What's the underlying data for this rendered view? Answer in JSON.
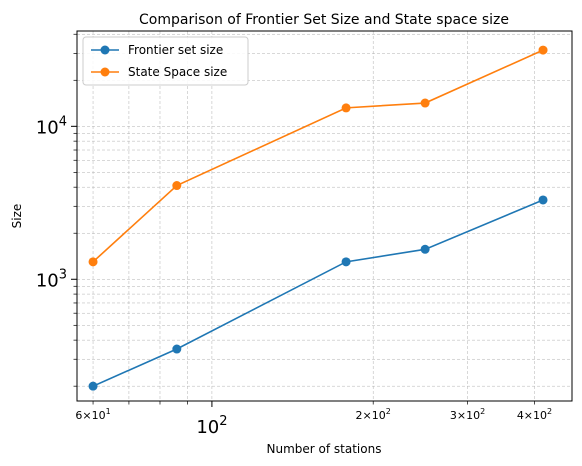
{
  "chart_data": {
    "type": "line",
    "title": "Comparison of Frontier Set Size and State space size",
    "xlabel": "Number of stations",
    "ylabel": "Size",
    "x_scale": "log",
    "y_scale": "log",
    "xlim": [
      56,
      470
    ],
    "ylim": [
      160,
      42000
    ],
    "grid": true,
    "legend_position": "top-left",
    "x": [
      60,
      86,
      178,
      250,
      415
    ],
    "series": [
      {
        "name": "Frontier set size",
        "color": "#1f77b4",
        "values": [
          200,
          350,
          1300,
          1570,
          3300
        ]
      },
      {
        "name": "State Space size",
        "color": "#ff7f0e",
        "values": [
          1300,
          4100,
          13200,
          14200,
          31500
        ]
      }
    ],
    "x_ticks": [
      {
        "value": 60,
        "base": "6",
        "exp": "1",
        "size": "small"
      },
      {
        "value": 100,
        "base": "10",
        "exp": "2",
        "size": "big"
      },
      {
        "value": 200,
        "base": "2",
        "exp": "2",
        "size": "small"
      },
      {
        "value": 300,
        "base": "3",
        "exp": "2",
        "size": "small"
      },
      {
        "value": 400,
        "base": "4",
        "exp": "2",
        "size": "small"
      }
    ],
    "y_ticks": [
      {
        "value": 1000,
        "base": "10",
        "exp": "3"
      },
      {
        "value": 10000,
        "base": "10",
        "exp": "4"
      }
    ]
  }
}
